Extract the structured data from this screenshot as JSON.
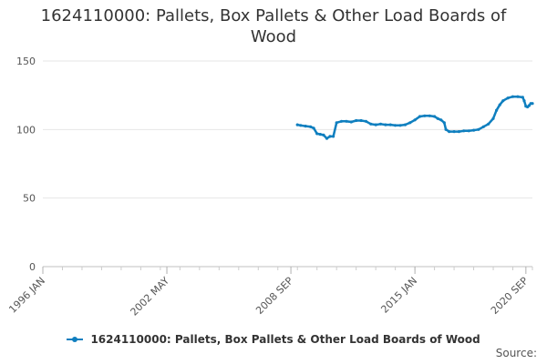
{
  "chart_data": {
    "type": "line",
    "title_lines": [
      "1624110000: Pallets, Box Pallets & Other Load Boards of",
      "Wood"
    ],
    "xlabel": "",
    "ylabel": "",
    "ylim": [
      0,
      150
    ],
    "y_ticks": [
      0,
      50,
      100,
      150
    ],
    "x_range": [
      "1996-01",
      "2021-01"
    ],
    "x_ticks": [
      {
        "date": "1996-01",
        "label": "1996 JAN"
      },
      {
        "date": "2002-05",
        "label": "2002 MAY"
      },
      {
        "date": "2008-09",
        "label": "2008 SEP"
      },
      {
        "date": "2015-01",
        "label": "2015 JAN"
      },
      {
        "date": "2020-09",
        "label": "2020 SEP"
      }
    ],
    "grid": true,
    "legend_position": "bottom",
    "series": [
      {
        "name": "1624110000: Pallets, Box Pallets & Other Load Boards of Wood",
        "color": "#0f7fbf",
        "points": [
          [
            "2009-01",
            103.5
          ],
          [
            "2009-03",
            103.0
          ],
          [
            "2009-06",
            102.5
          ],
          [
            "2009-09",
            102.0
          ],
          [
            "2009-11",
            101.0
          ],
          [
            "2010-01",
            97.0
          ],
          [
            "2010-03",
            96.5
          ],
          [
            "2010-05",
            96.0
          ],
          [
            "2010-07",
            93.5
          ],
          [
            "2010-09",
            95.0
          ],
          [
            "2010-11",
            95.0
          ],
          [
            "2011-01",
            105.0
          ],
          [
            "2011-04",
            106.0
          ],
          [
            "2011-07",
            106.0
          ],
          [
            "2011-10",
            105.5
          ],
          [
            "2012-01",
            106.5
          ],
          [
            "2012-04",
            106.5
          ],
          [
            "2012-07",
            106.0
          ],
          [
            "2012-10",
            104.0
          ],
          [
            "2013-01",
            103.5
          ],
          [
            "2013-04",
            104.0
          ],
          [
            "2013-07",
            103.5
          ],
          [
            "2013-10",
            103.5
          ],
          [
            "2014-01",
            103.0
          ],
          [
            "2014-04",
            103.0
          ],
          [
            "2014-07",
            103.5
          ],
          [
            "2014-10",
            105.0
          ],
          [
            "2015-01",
            107.0
          ],
          [
            "2015-04",
            109.5
          ],
          [
            "2015-07",
            110.0
          ],
          [
            "2015-10",
            110.0
          ],
          [
            "2016-01",
            109.5
          ],
          [
            "2016-03",
            108.0
          ],
          [
            "2016-05",
            107.0
          ],
          [
            "2016-07",
            105.0
          ],
          [
            "2016-08",
            100.0
          ],
          [
            "2016-10",
            98.5
          ],
          [
            "2017-01",
            98.5
          ],
          [
            "2017-04",
            98.5
          ],
          [
            "2017-07",
            99.0
          ],
          [
            "2017-10",
            99.0
          ],
          [
            "2018-01",
            99.5
          ],
          [
            "2018-04",
            100.0
          ],
          [
            "2018-07",
            102.0
          ],
          [
            "2018-10",
            104.0
          ],
          [
            "2019-01",
            108.0
          ],
          [
            "2019-03",
            114.0
          ],
          [
            "2019-05",
            118.0
          ],
          [
            "2019-07",
            121.0
          ],
          [
            "2019-10",
            123.0
          ],
          [
            "2020-01",
            124.0
          ],
          [
            "2020-04",
            124.0
          ],
          [
            "2020-07",
            123.5
          ],
          [
            "2020-08",
            121.0
          ],
          [
            "2020-09",
            117.0
          ],
          [
            "2020-10",
            116.5
          ],
          [
            "2020-11",
            117.5
          ],
          [
            "2020-12",
            119.0
          ],
          [
            "2021-01",
            119.0
          ]
        ]
      }
    ]
  },
  "legend": {
    "label": "1624110000: Pallets, Box Pallets & Other Load Boards of Wood"
  },
  "source": {
    "label": "Source:"
  }
}
